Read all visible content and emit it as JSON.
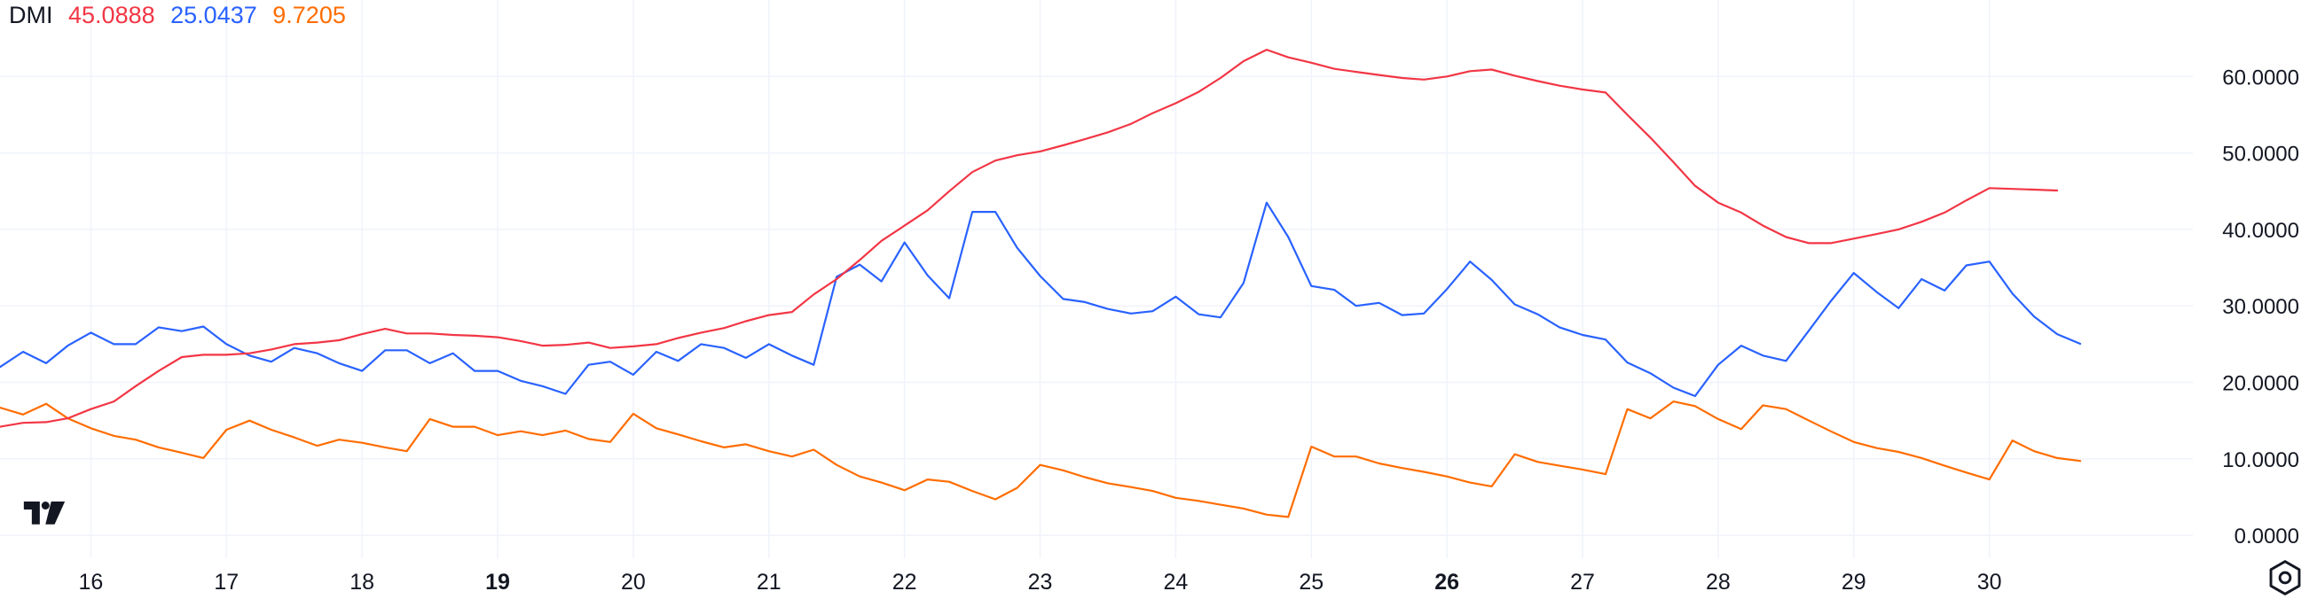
{
  "legend": {
    "name": "DMI",
    "adx_value": "45.0888",
    "plus_di_value": "25.0437",
    "minus_di_value": "9.7205"
  },
  "icons": {
    "logo": "tradingview-logo-icon",
    "settings": "chart-settings-icon"
  },
  "colors": {
    "adx": "#f23645",
    "plus_di": "#2962ff",
    "minus_di": "#ff6d00",
    "grid": "#f0f3fa",
    "text": "#131722"
  },
  "chart_data": {
    "type": "line",
    "title": "DMI",
    "ylim": [
      -3,
      70
    ],
    "y_ticks": [
      "0.0000",
      "10.0000",
      "20.0000",
      "30.0000",
      "40.0000",
      "50.0000",
      "60.0000"
    ],
    "x_range": [
      15.33,
      31.5
    ],
    "x_ticks": [
      {
        "label": "16",
        "x": 16,
        "bold": false
      },
      {
        "label": "17",
        "x": 17,
        "bold": false
      },
      {
        "label": "18",
        "x": 18,
        "bold": false
      },
      {
        "label": "19",
        "x": 19,
        "bold": true
      },
      {
        "label": "20",
        "x": 20,
        "bold": false
      },
      {
        "label": "21",
        "x": 21,
        "bold": false
      },
      {
        "label": "22",
        "x": 22,
        "bold": false
      },
      {
        "label": "23",
        "x": 23,
        "bold": false
      },
      {
        "label": "24",
        "x": 24,
        "bold": false
      },
      {
        "label": "25",
        "x": 25,
        "bold": false
      },
      {
        "label": "26",
        "x": 26,
        "bold": true
      },
      {
        "label": "27",
        "x": 27,
        "bold": false
      },
      {
        "label": "28",
        "x": 28,
        "bold": false
      },
      {
        "label": "29",
        "x": 29,
        "bold": false
      },
      {
        "label": "30",
        "x": 30,
        "bold": false
      }
    ],
    "series": [
      {
        "key": "adx",
        "color": "#f23645",
        "points": [
          [
            15.33,
            14.2
          ],
          [
            15.5,
            14.7
          ],
          [
            15.67,
            14.8
          ],
          [
            15.83,
            15.3
          ],
          [
            16.0,
            16.5
          ],
          [
            16.17,
            17.5
          ],
          [
            16.33,
            19.5
          ],
          [
            16.5,
            21.5
          ],
          [
            16.67,
            23.3
          ],
          [
            16.83,
            23.6
          ],
          [
            17.0,
            23.6
          ],
          [
            17.17,
            23.8
          ],
          [
            17.33,
            24.3
          ],
          [
            17.5,
            25.0
          ],
          [
            17.67,
            25.2
          ],
          [
            17.83,
            25.5
          ],
          [
            18.0,
            26.3
          ],
          [
            18.17,
            27.0
          ],
          [
            18.33,
            26.4
          ],
          [
            18.5,
            26.4
          ],
          [
            18.67,
            26.2
          ],
          [
            18.83,
            26.1
          ],
          [
            19.0,
            25.9
          ],
          [
            19.17,
            25.4
          ],
          [
            19.33,
            24.8
          ],
          [
            19.5,
            24.9
          ],
          [
            19.67,
            25.2
          ],
          [
            19.83,
            24.5
          ],
          [
            20.0,
            24.7
          ],
          [
            20.17,
            25.0
          ],
          [
            20.33,
            25.8
          ],
          [
            20.5,
            26.5
          ],
          [
            20.67,
            27.1
          ],
          [
            20.83,
            28.0
          ],
          [
            21.0,
            28.8
          ],
          [
            21.17,
            29.2
          ],
          [
            21.33,
            31.5
          ],
          [
            21.5,
            33.5
          ],
          [
            21.67,
            36.0
          ],
          [
            21.83,
            38.5
          ],
          [
            22.0,
            40.5
          ],
          [
            22.17,
            42.5
          ],
          [
            22.33,
            45.0
          ],
          [
            22.5,
            47.5
          ],
          [
            22.67,
            49.0
          ],
          [
            22.83,
            49.7
          ],
          [
            23.0,
            50.2
          ],
          [
            23.17,
            51.0
          ],
          [
            23.33,
            51.8
          ],
          [
            23.5,
            52.7
          ],
          [
            23.67,
            53.8
          ],
          [
            23.83,
            55.2
          ],
          [
            24.0,
            56.5
          ],
          [
            24.17,
            58.0
          ],
          [
            24.33,
            59.8
          ],
          [
            24.5,
            62.0
          ],
          [
            24.67,
            63.5
          ],
          [
            24.83,
            62.5
          ],
          [
            25.0,
            61.8
          ],
          [
            25.17,
            61.0
          ],
          [
            25.33,
            60.6
          ],
          [
            25.5,
            60.2
          ],
          [
            25.67,
            59.8
          ],
          [
            25.83,
            59.6
          ],
          [
            26.0,
            60.0
          ],
          [
            26.17,
            60.7
          ],
          [
            26.33,
            60.9
          ],
          [
            26.5,
            60.1
          ],
          [
            26.67,
            59.4
          ],
          [
            26.83,
            58.8
          ],
          [
            27.0,
            58.3
          ],
          [
            27.17,
            57.9
          ],
          [
            27.33,
            55.0
          ],
          [
            27.5,
            52.0
          ],
          [
            27.67,
            48.8
          ],
          [
            27.83,
            45.7
          ],
          [
            28.0,
            43.5
          ],
          [
            28.17,
            42.2
          ],
          [
            28.33,
            40.5
          ],
          [
            28.5,
            39.0
          ],
          [
            28.67,
            38.2
          ],
          [
            28.83,
            38.2
          ],
          [
            29.0,
            38.8
          ],
          [
            29.17,
            39.4
          ],
          [
            29.33,
            40.0
          ],
          [
            29.5,
            41.0
          ],
          [
            29.67,
            42.2
          ],
          [
            29.83,
            43.8
          ],
          [
            30.0,
            45.4
          ],
          [
            30.17,
            45.3
          ],
          [
            30.33,
            45.2
          ],
          [
            30.5,
            45.09
          ]
        ]
      },
      {
        "key": "plus_di",
        "color": "#2962ff",
        "points": [
          [
            15.33,
            22.0
          ],
          [
            15.5,
            24.0
          ],
          [
            15.67,
            22.5
          ],
          [
            15.83,
            24.8
          ],
          [
            16.0,
            26.5
          ],
          [
            16.17,
            25.0
          ],
          [
            16.33,
            25.0
          ],
          [
            16.5,
            27.2
          ],
          [
            16.67,
            26.7
          ],
          [
            16.83,
            27.3
          ],
          [
            17.0,
            25.0
          ],
          [
            17.17,
            23.5
          ],
          [
            17.33,
            22.7
          ],
          [
            17.5,
            24.5
          ],
          [
            17.67,
            23.8
          ],
          [
            17.83,
            22.5
          ],
          [
            18.0,
            21.5
          ],
          [
            18.17,
            24.2
          ],
          [
            18.33,
            24.2
          ],
          [
            18.5,
            22.5
          ],
          [
            18.67,
            23.8
          ],
          [
            18.83,
            21.5
          ],
          [
            19.0,
            21.5
          ],
          [
            19.17,
            20.2
          ],
          [
            19.33,
            19.5
          ],
          [
            19.5,
            18.5
          ],
          [
            19.67,
            22.3
          ],
          [
            19.83,
            22.7
          ],
          [
            20.0,
            21.0
          ],
          [
            20.17,
            24.0
          ],
          [
            20.33,
            22.8
          ],
          [
            20.5,
            25.0
          ],
          [
            20.67,
            24.5
          ],
          [
            20.83,
            23.2
          ],
          [
            21.0,
            25.0
          ],
          [
            21.17,
            23.5
          ],
          [
            21.33,
            22.3
          ],
          [
            21.5,
            33.8
          ],
          [
            21.67,
            35.4
          ],
          [
            21.83,
            33.2
          ],
          [
            22.0,
            38.3
          ],
          [
            22.17,
            34.0
          ],
          [
            22.33,
            31.0
          ],
          [
            22.5,
            42.3
          ],
          [
            22.67,
            42.3
          ],
          [
            22.83,
            37.6
          ],
          [
            23.0,
            33.9
          ],
          [
            23.17,
            30.9
          ],
          [
            23.33,
            30.5
          ],
          [
            23.5,
            29.6
          ],
          [
            23.67,
            29.0
          ],
          [
            23.83,
            29.3
          ],
          [
            24.0,
            31.2
          ],
          [
            24.17,
            28.9
          ],
          [
            24.33,
            28.5
          ],
          [
            24.5,
            33.0
          ],
          [
            24.67,
            43.5
          ],
          [
            24.83,
            39.0
          ],
          [
            25.0,
            32.6
          ],
          [
            25.17,
            32.1
          ],
          [
            25.33,
            30.0
          ],
          [
            25.5,
            30.4
          ],
          [
            25.67,
            28.8
          ],
          [
            25.83,
            29.0
          ],
          [
            26.0,
            32.2
          ],
          [
            26.17,
            35.8
          ],
          [
            26.33,
            33.4
          ],
          [
            26.5,
            30.2
          ],
          [
            26.67,
            28.9
          ],
          [
            26.83,
            27.2
          ],
          [
            27.0,
            26.2
          ],
          [
            27.17,
            25.6
          ],
          [
            27.33,
            22.6
          ],
          [
            27.5,
            21.2
          ],
          [
            27.67,
            19.3
          ],
          [
            27.83,
            18.2
          ],
          [
            28.0,
            22.3
          ],
          [
            28.17,
            24.8
          ],
          [
            28.33,
            23.5
          ],
          [
            28.5,
            22.8
          ],
          [
            28.67,
            26.8
          ],
          [
            28.83,
            30.6
          ],
          [
            29.0,
            34.3
          ],
          [
            29.17,
            31.8
          ],
          [
            29.33,
            29.7
          ],
          [
            29.5,
            33.5
          ],
          [
            29.67,
            32.0
          ],
          [
            29.83,
            35.3
          ],
          [
            30.0,
            35.8
          ],
          [
            30.17,
            31.6
          ],
          [
            30.33,
            28.6
          ],
          [
            30.5,
            26.3
          ],
          [
            30.67,
            25.04
          ]
        ]
      },
      {
        "key": "minus_di",
        "color": "#ff6d00",
        "points": [
          [
            15.33,
            16.7
          ],
          [
            15.5,
            15.8
          ],
          [
            15.67,
            17.2
          ],
          [
            15.83,
            15.3
          ],
          [
            16.0,
            14.0
          ],
          [
            16.17,
            13.0
          ],
          [
            16.33,
            12.5
          ],
          [
            16.5,
            11.5
          ],
          [
            16.67,
            10.8
          ],
          [
            16.83,
            10.1
          ],
          [
            17.0,
            13.8
          ],
          [
            17.17,
            15.0
          ],
          [
            17.33,
            13.8
          ],
          [
            17.5,
            12.8
          ],
          [
            17.67,
            11.7
          ],
          [
            17.83,
            12.5
          ],
          [
            18.0,
            12.1
          ],
          [
            18.17,
            11.5
          ],
          [
            18.33,
            11.0
          ],
          [
            18.5,
            15.2
          ],
          [
            18.67,
            14.2
          ],
          [
            18.83,
            14.2
          ],
          [
            19.0,
            13.1
          ],
          [
            19.17,
            13.6
          ],
          [
            19.33,
            13.1
          ],
          [
            19.5,
            13.7
          ],
          [
            19.67,
            12.6
          ],
          [
            19.83,
            12.2
          ],
          [
            20.0,
            15.9
          ],
          [
            20.17,
            14.0
          ],
          [
            20.33,
            13.2
          ],
          [
            20.5,
            12.3
          ],
          [
            20.67,
            11.5
          ],
          [
            20.83,
            11.9
          ],
          [
            21.0,
            11.0
          ],
          [
            21.17,
            10.3
          ],
          [
            21.33,
            11.2
          ],
          [
            21.5,
            9.2
          ],
          [
            21.67,
            7.7
          ],
          [
            21.83,
            6.9
          ],
          [
            22.0,
            5.9
          ],
          [
            22.17,
            7.3
          ],
          [
            22.33,
            7.0
          ],
          [
            22.5,
            5.8
          ],
          [
            22.67,
            4.7
          ],
          [
            22.83,
            6.2
          ],
          [
            23.0,
            9.2
          ],
          [
            23.17,
            8.5
          ],
          [
            23.33,
            7.6
          ],
          [
            23.5,
            6.8
          ],
          [
            23.67,
            6.3
          ],
          [
            23.83,
            5.8
          ],
          [
            24.0,
            4.9
          ],
          [
            24.17,
            4.5
          ],
          [
            24.33,
            4.0
          ],
          [
            24.5,
            3.5
          ],
          [
            24.67,
            2.7
          ],
          [
            24.83,
            2.4
          ],
          [
            25.0,
            11.6
          ],
          [
            25.17,
            10.3
          ],
          [
            25.33,
            10.3
          ],
          [
            25.5,
            9.4
          ],
          [
            25.67,
            8.8
          ],
          [
            25.83,
            8.3
          ],
          [
            26.0,
            7.7
          ],
          [
            26.17,
            6.9
          ],
          [
            26.33,
            6.4
          ],
          [
            26.5,
            10.6
          ],
          [
            26.67,
            9.6
          ],
          [
            26.83,
            9.1
          ],
          [
            27.0,
            8.6
          ],
          [
            27.17,
            8.0
          ],
          [
            27.33,
            16.5
          ],
          [
            27.5,
            15.3
          ],
          [
            27.67,
            17.5
          ],
          [
            27.83,
            16.9
          ],
          [
            28.0,
            15.2
          ],
          [
            28.17,
            13.9
          ],
          [
            28.33,
            17.0
          ],
          [
            28.5,
            16.5
          ],
          [
            28.67,
            15.0
          ],
          [
            28.83,
            13.6
          ],
          [
            29.0,
            12.2
          ],
          [
            29.17,
            11.4
          ],
          [
            29.33,
            10.9
          ],
          [
            29.5,
            10.1
          ],
          [
            29.67,
            9.1
          ],
          [
            29.83,
            8.2
          ],
          [
            30.0,
            7.3
          ],
          [
            30.17,
            12.4
          ],
          [
            30.33,
            11.0
          ],
          [
            30.5,
            10.1
          ],
          [
            30.67,
            9.72
          ]
        ]
      }
    ],
    "grid": true,
    "legend_position": "top-left"
  }
}
